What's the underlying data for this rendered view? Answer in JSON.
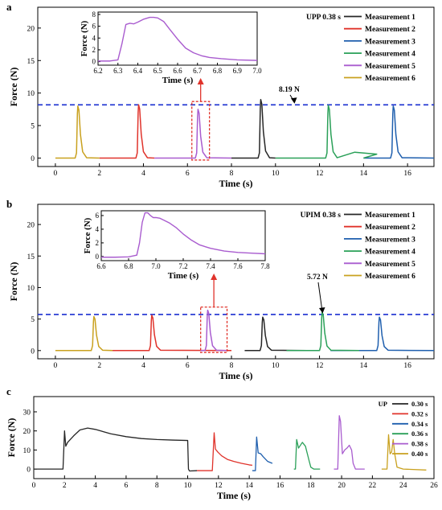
{
  "chart_data": [
    {
      "type": "line",
      "panel_label": "a",
      "xlabel": "Time (s)",
      "ylabel": "Force (N)",
      "xlim": [
        -0.8,
        17.2
      ],
      "ylim": [
        -1.3,
        23.2
      ],
      "xticks": [
        0,
        2,
        4,
        6,
        8,
        10,
        12,
        14,
        16
      ],
      "yticks": [
        0,
        5,
        10,
        15,
        20
      ],
      "legend_title": "UPP  0.38 s",
      "legend_position": "top-right",
      "reference_line": {
        "value": 8.19,
        "label": "8.19 N"
      },
      "series": [
        {
          "name": "Measurement 1",
          "color": "#262626",
          "base_start": 8.0,
          "base_end": 10.0,
          "peak_t": 9.33,
          "peak": 9.0
        },
        {
          "name": "Measurement 2",
          "color": "#e0332b",
          "base_start": 2.0,
          "base_end": 4.5,
          "peak_t": 3.78,
          "peak": 8.2
        },
        {
          "name": "Measurement 3",
          "color": "#1f5fae",
          "base_start": 14.0,
          "base_end": 17.2,
          "peak_t": 15.35,
          "peak": 8.0
        },
        {
          "name": "Measurement 4",
          "color": "#2aa058",
          "base_start": 10.0,
          "base_end": 14.0,
          "peak_t": 12.4,
          "peak": 8.1
        },
        {
          "name": "Measurement 5",
          "color": "#a95ccf",
          "base_start": 4.5,
          "base_end": 8.0,
          "peak_t": 6.48,
          "peak": 7.5
        },
        {
          "name": "Measurement 6",
          "color": "#c9a11f",
          "base_start": 0.0,
          "base_end": 2.0,
          "peak_t": 1.02,
          "peak": 8.0
        }
      ],
      "highlight_box": {
        "x": [
          6.2,
          7.0
        ],
        "y": [
          -0.3,
          8.7
        ]
      },
      "inset": {
        "xlabel": "Time (s)",
        "ylabel": "Force (N)",
        "xlim": [
          6.2,
          7.0
        ],
        "ylim": [
          -0.6,
          8.4
        ],
        "xticks": [
          "6.2",
          "6.3",
          "6.4",
          "6.5",
          "6.6",
          "6.7",
          "6.8",
          "6.9",
          "7.0"
        ],
        "yticks": [
          0,
          2,
          4,
          6,
          8
        ],
        "series": {
          "name": "Measurement 5",
          "color": "#a95ccf",
          "x": [
            6.2,
            6.26,
            6.3,
            6.32,
            6.34,
            6.36,
            6.38,
            6.4,
            6.43,
            6.46,
            6.48,
            6.5,
            6.53,
            6.56,
            6.6,
            6.64,
            6.68,
            6.72,
            6.76,
            6.82,
            6.9,
            7.0
          ],
          "y": [
            0.1,
            0.1,
            0.3,
            3.0,
            6.3,
            6.5,
            6.4,
            6.7,
            7.2,
            7.5,
            7.5,
            7.4,
            6.8,
            5.5,
            3.8,
            2.3,
            1.5,
            1.0,
            0.7,
            0.5,
            0.3,
            0.2
          ]
        }
      }
    },
    {
      "type": "line",
      "panel_label": "b",
      "xlabel": "Time (s)",
      "ylabel": "Force (N)",
      "xlim": [
        -0.8,
        17.2
      ],
      "ylim": [
        -1.3,
        23.2
      ],
      "xticks": [
        0,
        2,
        4,
        6,
        8,
        10,
        12,
        14,
        16
      ],
      "yticks": [
        0,
        5,
        10,
        15,
        20
      ],
      "legend_title": "UPIM  0.38 s",
      "legend_position": "top-right",
      "reference_line": {
        "value": 5.72,
        "label": "5.72 N"
      },
      "series": [
        {
          "name": "Measurement 1",
          "color": "#262626",
          "base_start": 8.6,
          "base_end": 12.0,
          "peak_t": 9.42,
          "peak": 5.3
        },
        {
          "name": "Measurement 2",
          "color": "#e0332b",
          "base_start": 2.5,
          "base_end": 8.0,
          "peak_t": 4.38,
          "peak": 5.6
        },
        {
          "name": "Measurement 3",
          "color": "#1f5fae",
          "base_start": 12.5,
          "base_end": 17.2,
          "peak_t": 14.72,
          "peak": 5.3
        },
        {
          "name": "Measurement 4",
          "color": "#2aa058",
          "base_start": 10.5,
          "base_end": 13.8,
          "peak_t": 12.12,
          "peak": 6.1
        },
        {
          "name": "Measurement 5",
          "color": "#a95ccf",
          "base_start": 6.6,
          "base_end": 7.8,
          "peak_t": 6.92,
          "peak": 6.4
        },
        {
          "name": "Measurement 6",
          "color": "#c9a11f",
          "base_start": 0.0,
          "base_end": 2.6,
          "peak_t": 1.75,
          "peak": 5.4
        }
      ],
      "highlight_box": {
        "x": [
          6.6,
          7.8
        ],
        "y": [
          -0.3,
          6.9
        ]
      },
      "inset": {
        "xlabel": "Time (s)",
        "ylabel": "Force (N)",
        "xlim": [
          6.6,
          7.8
        ],
        "ylim": [
          -0.6,
          6.7
        ],
        "xticks": [
          "6.6",
          "6.8",
          "7.0",
          "7.2",
          "7.4",
          "7.6",
          "7.8"
        ],
        "yticks": [
          0,
          2,
          4,
          6
        ],
        "series": {
          "name": "Measurement 5",
          "color": "#a95ccf",
          "x": [
            6.6,
            6.7,
            6.8,
            6.86,
            6.88,
            6.9,
            6.92,
            6.94,
            6.96,
            6.98,
            7.0,
            7.03,
            7.06,
            7.1,
            7.15,
            7.2,
            7.26,
            7.32,
            7.4,
            7.5,
            7.6,
            7.7,
            7.8
          ],
          "y": [
            -0.1,
            -0.1,
            -0.05,
            0.2,
            2.0,
            5.0,
            6.4,
            6.4,
            6.0,
            5.7,
            5.7,
            5.6,
            5.3,
            4.9,
            4.2,
            3.3,
            2.4,
            1.7,
            1.2,
            0.8,
            0.6,
            0.5,
            0.4
          ]
        }
      }
    },
    {
      "type": "line",
      "panel_label": "c",
      "xlabel": "Time (s)",
      "ylabel": "Force (N)",
      "xlim": [
        0,
        26
      ],
      "ylim": [
        -5,
        38
      ],
      "xticks": [
        0,
        2,
        4,
        6,
        8,
        10,
        12,
        14,
        16,
        18,
        20,
        22,
        24,
        26
      ],
      "yticks": [
        0,
        10,
        20,
        30
      ],
      "legend_title": "UP",
      "legend_position": "top-right",
      "series": [
        {
          "name": "0.30 s",
          "color": "#262626",
          "x": [
            0,
            1.9,
            2.0,
            2.08,
            2.2,
            2.6,
            3.0,
            3.5,
            4.0,
            5.0,
            6.0,
            7.0,
            8.0,
            9.0,
            10.0,
            10.05,
            10.12,
            10.6
          ],
          "y": [
            0,
            0,
            20.0,
            12.0,
            14.0,
            17.5,
            20.5,
            21.5,
            20.8,
            18.5,
            17.0,
            16.0,
            15.5,
            15.2,
            15.0,
            0,
            -1.0,
            -0.8
          ]
        },
        {
          "name": "0.32 s",
          "color": "#e0332b",
          "x": [
            10.6,
            11.6,
            11.72,
            11.8,
            11.95,
            12.2,
            12.6,
            13.0,
            13.5,
            14.0,
            14.2
          ],
          "y": [
            -0.8,
            -0.8,
            19.0,
            10.5,
            9.0,
            7.0,
            5.0,
            4.0,
            3.0,
            2.2,
            2.0
          ]
        },
        {
          "name": "0.34 s",
          "color": "#1f5fae",
          "x": [
            14.2,
            14.4,
            14.48,
            14.58,
            14.75,
            14.9,
            15.2,
            15.5
          ],
          "y": [
            -0.8,
            -0.8,
            16.8,
            8.5,
            8.0,
            6.5,
            4.0,
            3.0
          ]
        },
        {
          "name": "0.36 s",
          "color": "#2aa058",
          "x": [
            16.9,
            17.0,
            17.08,
            17.2,
            17.45,
            17.65,
            17.9,
            18.0,
            18.2,
            18.6
          ],
          "y": [
            0,
            0,
            15.5,
            11.0,
            14.0,
            12.0,
            4.0,
            1.0,
            0,
            0
          ]
        },
        {
          "name": "0.38 s",
          "color": "#a95ccf",
          "x": [
            19.5,
            19.75,
            19.85,
            19.93,
            20.05,
            20.2,
            20.35,
            20.5,
            20.65,
            20.75,
            20.9,
            21.5
          ],
          "y": [
            0,
            0,
            28.0,
            25.0,
            8.0,
            10.0,
            11.0,
            12.5,
            10.0,
            3.0,
            0,
            0
          ]
        },
        {
          "name": "0.40 s",
          "color": "#c9a11f",
          "x": [
            22.6,
            22.95,
            23.05,
            23.15,
            23.25,
            23.35,
            23.45,
            23.6,
            24.0,
            25.5
          ],
          "y": [
            0,
            0,
            18.0,
            8.0,
            9.0,
            15.5,
            8.0,
            1.0,
            0,
            -0.5
          ]
        }
      ]
    }
  ]
}
